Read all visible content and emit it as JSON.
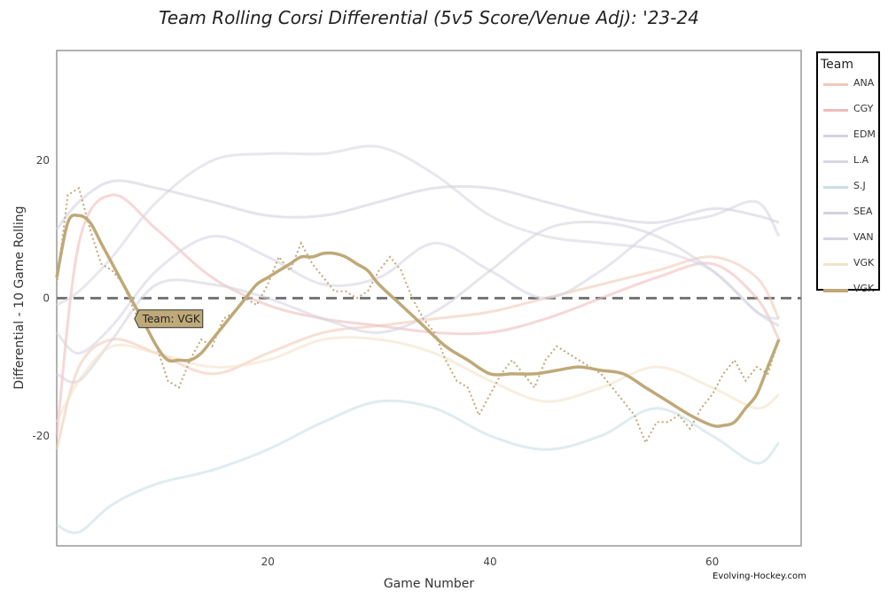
{
  "chart_data": {
    "type": "line",
    "title": "Team Rolling Corsi Differential (5v5 Score/Venue Adj): '23-24",
    "xlabel": "Game Number",
    "ylabel": "Differential - 10 Game Rolling",
    "xlim": [
      1,
      68
    ],
    "ylim": [
      -36,
      36
    ],
    "x_ticks": [
      20,
      40,
      60
    ],
    "y_ticks": [
      -20,
      0,
      20
    ],
    "zero_line": 0,
    "legend_title": "Team",
    "annotation": "Team: VGK",
    "annotation_point": {
      "x": 8,
      "y": -3
    },
    "credit": "Evolving-Hockey.com",
    "series": [
      {
        "name": "ANA",
        "color": "#f2c9b8",
        "emphasis": false,
        "x": [
          1,
          3,
          6,
          10,
          15,
          20,
          25,
          30,
          35,
          40,
          45,
          50,
          55,
          60,
          64,
          66
        ],
        "y": [
          -22,
          -10,
          -6,
          -8,
          -11,
          -8,
          -5,
          -4,
          -3,
          -2,
          0,
          2,
          4,
          6,
          3,
          -3
        ]
      },
      {
        "name": "CGY",
        "color": "#f0bcbc",
        "emphasis": false,
        "x": [
          1,
          3,
          6,
          10,
          15,
          20,
          25,
          30,
          35,
          40,
          45,
          50,
          55,
          60,
          64,
          66
        ],
        "y": [
          -20,
          8,
          15,
          10,
          3,
          -1,
          -3,
          -4,
          -5,
          -5,
          -3,
          0,
          3,
          5,
          0,
          -6
        ]
      },
      {
        "name": "EDM",
        "color": "#d7d3e2",
        "emphasis": false,
        "x": [
          1,
          3,
          6,
          10,
          15,
          20,
          25,
          30,
          35,
          40,
          45,
          50,
          55,
          60,
          64,
          66
        ],
        "y": [
          -5,
          -8,
          -4,
          4,
          9,
          6,
          2,
          3,
          8,
          4,
          0,
          4,
          10,
          12,
          14,
          9
        ]
      },
      {
        "name": "L.A",
        "color": "#d9d7e3",
        "emphasis": false,
        "x": [
          1,
          3,
          6,
          10,
          15,
          20,
          25,
          30,
          35,
          40,
          45,
          50,
          55,
          60,
          64,
          66
        ],
        "y": [
          -1,
          1,
          6,
          14,
          20,
          21,
          21,
          22,
          18,
          12,
          9,
          8,
          7,
          4,
          -2,
          -3
        ]
      },
      {
        "name": "S.J",
        "color": "#c9dfe6",
        "emphasis": false,
        "x": [
          1,
          3,
          6,
          10,
          15,
          20,
          25,
          30,
          35,
          40,
          45,
          50,
          55,
          60,
          64,
          66
        ],
        "y": [
          -33,
          -34,
          -30,
          -27,
          -25,
          -22,
          -18,
          -15,
          -16,
          -20,
          -22,
          -20,
          -16,
          -20,
          -24,
          -21
        ]
      },
      {
        "name": "SEA",
        "color": "#d4d1de",
        "emphasis": false,
        "x": [
          1,
          3,
          6,
          10,
          15,
          20,
          25,
          30,
          35,
          40,
          45,
          50,
          55,
          60,
          64,
          66
        ],
        "y": [
          10,
          14,
          17,
          16,
          14,
          12,
          12,
          14,
          16,
          16,
          14,
          12,
          11,
          13,
          12,
          11
        ]
      },
      {
        "name": "VAN",
        "color": "#d6d4e0",
        "emphasis": false,
        "x": [
          1,
          3,
          6,
          10,
          15,
          20,
          25,
          30,
          35,
          40,
          45,
          50,
          55,
          60,
          64,
          66
        ],
        "y": [
          -11,
          -12,
          -6,
          2,
          2,
          0,
          -3,
          -5,
          -2,
          4,
          10,
          11,
          9,
          4,
          -2,
          -4
        ]
      },
      {
        "name": "VGK",
        "color": "#f3e3c8",
        "emphasis": false,
        "x": [
          1,
          3,
          6,
          10,
          15,
          20,
          25,
          30,
          35,
          40,
          45,
          50,
          55,
          60,
          64,
          66
        ],
        "y": [
          -18,
          -12,
          -7,
          -8,
          -10,
          -9,
          -6,
          -6,
          -8,
          -12,
          -15,
          -13,
          -10,
          -13,
          -16,
          -14
        ]
      },
      {
        "name": "VGK",
        "color": "#bfa978",
        "emphasis": true,
        "x": [
          1,
          2,
          3,
          4,
          5,
          6,
          7,
          8,
          9,
          10,
          11,
          12,
          13,
          14,
          15,
          16,
          17,
          18,
          19,
          20,
          21,
          22,
          23,
          24,
          25,
          26,
          27,
          28,
          29,
          30,
          32,
          34,
          36,
          38,
          40,
          42,
          44,
          46,
          48,
          50,
          52,
          54,
          56,
          58,
          60,
          61,
          62,
          63,
          64,
          65,
          66
        ],
        "y": [
          3,
          11,
          12,
          11,
          8,
          5,
          2,
          -1,
          -4,
          -7,
          -9,
          -9,
          -9,
          -8,
          -6,
          -4,
          -2,
          0,
          2,
          3,
          4,
          5,
          6,
          6,
          6.5,
          6.5,
          6,
          5,
          4,
          2,
          -1,
          -4,
          -7,
          -9,
          -11,
          -11,
          -11,
          -10.5,
          -10,
          -10.5,
          -11,
          -13,
          -15,
          -17,
          -18.5,
          -18.5,
          -18,
          -16,
          -14,
          -10,
          -6
        ],
        "x_raw": [
          1,
          2,
          3,
          4,
          5,
          6,
          7,
          8,
          9,
          10,
          11,
          12,
          13,
          14,
          15,
          16,
          17,
          18,
          19,
          20,
          21,
          22,
          23,
          24,
          25,
          26,
          27,
          28,
          29,
          30,
          31,
          32,
          33,
          34,
          35,
          36,
          37,
          38,
          39,
          40,
          41,
          42,
          43,
          44,
          45,
          46,
          47,
          48,
          49,
          50,
          51,
          52,
          53,
          54,
          55,
          56,
          57,
          58,
          59,
          60,
          61,
          62,
          63,
          64,
          65,
          66
        ],
        "y_raw": [
          2,
          15,
          16,
          10,
          5,
          4,
          2,
          -2,
          -4,
          -7,
          -12,
          -13,
          -9,
          -6,
          -7,
          -3,
          -2,
          0,
          -1,
          2,
          6,
          4,
          8,
          5,
          3,
          1,
          1,
          0,
          1,
          4,
          6,
          4,
          0,
          -3,
          -5,
          -9,
          -12,
          -13,
          -17,
          -14,
          -11,
          -9,
          -11,
          -13,
          -9,
          -7,
          -8,
          -9,
          -10,
          -11,
          -13,
          -15,
          -17,
          -21,
          -18,
          -18,
          -17,
          -19,
          -16,
          -14,
          -11,
          -9,
          -12,
          -10,
          -11,
          -6
        ]
      }
    ]
  }
}
